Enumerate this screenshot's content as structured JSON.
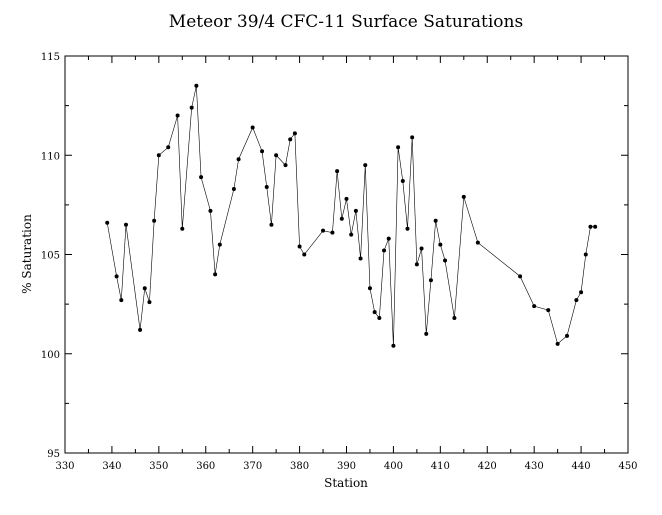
{
  "chart_data": {
    "type": "line",
    "title": "Meteor 39/4 CFC-11 Surface Saturations",
    "xlabel": "Station",
    "ylabel": "% Saturation",
    "xlim": [
      330,
      450
    ],
    "ylim": [
      95,
      115
    ],
    "x_ticks": [
      330,
      340,
      350,
      360,
      370,
      380,
      390,
      400,
      410,
      420,
      430,
      440,
      450
    ],
    "y_ticks": [
      95,
      100,
      105,
      110,
      115
    ],
    "grid": false,
    "marker": "dot",
    "series": [
      {
        "x": [
          339,
          341,
          342,
          343,
          346,
          347,
          348,
          349,
          350,
          352,
          354,
          355,
          357,
          358,
          359,
          361,
          362,
          363,
          366,
          367,
          370,
          372,
          373,
          374,
          375,
          377,
          378,
          379,
          380,
          381,
          385,
          387,
          388,
          389,
          390,
          391,
          392,
          393,
          394,
          395,
          396,
          397,
          398,
          399,
          400,
          401,
          402,
          403,
          404,
          405,
          406,
          407,
          408,
          409,
          410,
          411,
          413,
          415,
          418,
          427,
          430,
          433,
          435,
          437,
          439,
          440,
          441,
          442,
          443
        ],
        "y": [
          106.6,
          103.9,
          102.7,
          106.5,
          101.2,
          103.3,
          102.6,
          106.7,
          110.0,
          110.4,
          112.0,
          106.3,
          112.4,
          113.5,
          108.9,
          107.2,
          104.0,
          105.5,
          108.3,
          109.8,
          111.4,
          110.2,
          108.4,
          106.5,
          110.0,
          109.5,
          110.8,
          111.1,
          105.4,
          105.0,
          106.2,
          106.1,
          109.2,
          106.8,
          107.8,
          106.0,
          107.2,
          104.8,
          109.5,
          103.3,
          102.1,
          101.8,
          105.2,
          105.8,
          100.4,
          110.4,
          108.7,
          106.3,
          110.9,
          104.5,
          105.3,
          101.0,
          103.7,
          106.7,
          105.5,
          104.7,
          101.8,
          107.9,
          105.6,
          103.9,
          102.4,
          102.2,
          100.5,
          100.9,
          102.7,
          103.1,
          105.0,
          106.4,
          106.4
        ]
      }
    ]
  }
}
